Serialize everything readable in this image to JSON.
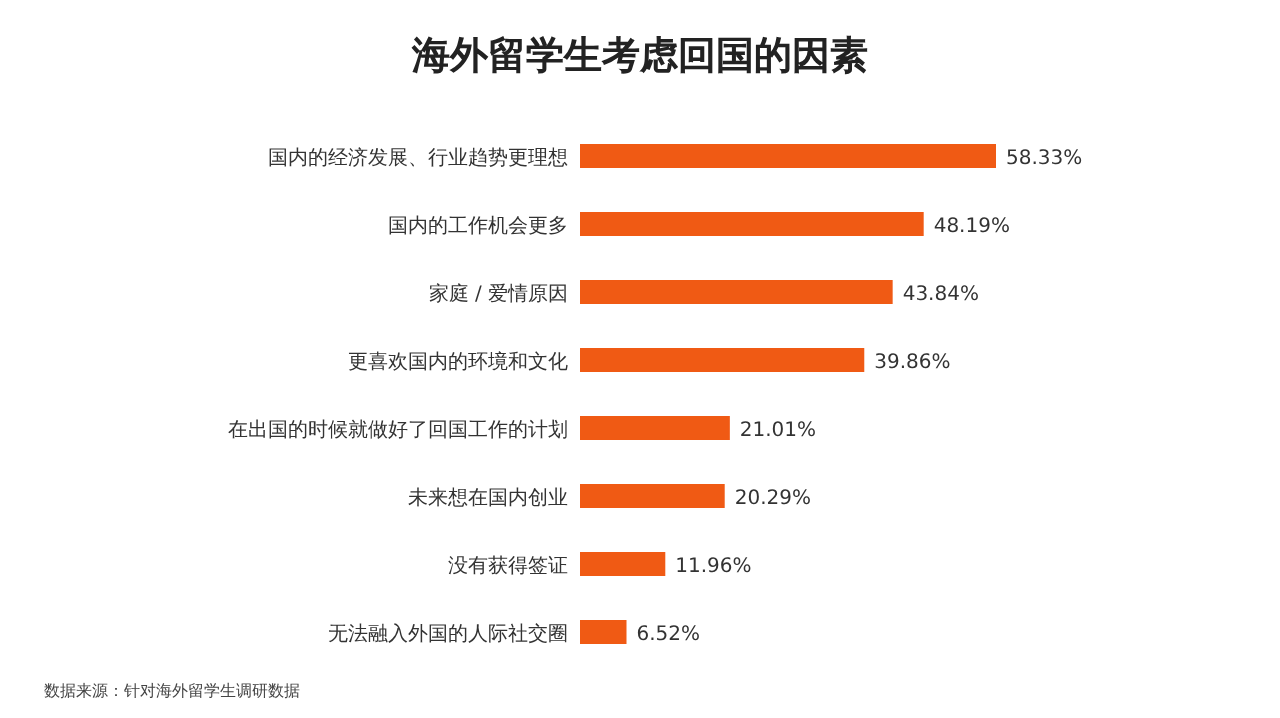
{
  "chart_data": {
    "type": "bar",
    "orientation": "horizontal",
    "title": "海外留学生考虑回国的因素",
    "categories": [
      "国内的经济发展、行业趋势更理想",
      "国内的工作机会更多",
      "家庭 / 爱情原因",
      "更喜欢国内的环境和文化",
      "在出国的时候就做好了回国工作的计划",
      "未来想在国内创业",
      "没有获得签证",
      "无法融入外国的人际社交圈"
    ],
    "values": [
      58.33,
      48.19,
      43.84,
      39.86,
      21.01,
      20.29,
      11.96,
      6.52
    ],
    "value_labels": [
      "58.33%",
      "48.19%",
      "43.84%",
      "39.86%",
      "21.01%",
      "20.29%",
      "11.96%",
      "6.52%"
    ],
    "color": "#f05a14",
    "annotations": [
      "数据来源：针对海外留学生调研数据"
    ]
  }
}
